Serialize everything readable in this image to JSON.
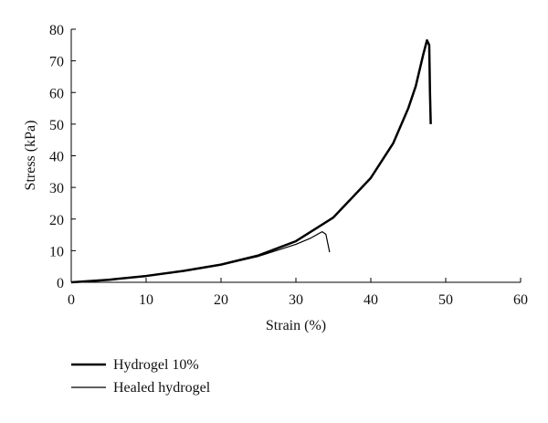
{
  "chart_data": {
    "type": "line",
    "x_label": "Strain (%)",
    "y_label": "Stress (kPa)",
    "xlim": [
      0,
      60
    ],
    "xticks": [
      0,
      10,
      20,
      30,
      40,
      50,
      60
    ],
    "ylim": [
      0,
      80
    ],
    "yticks": [
      0,
      10,
      20,
      30,
      40,
      50,
      60,
      70,
      80
    ],
    "grid": false,
    "legend": "bottom-left",
    "series": [
      {
        "name": "Hydrogel 10%",
        "color": "#000000",
        "x": [
          0,
          5,
          10,
          15,
          20,
          25,
          30,
          35,
          40,
          43,
          45,
          46,
          47,
          47.5,
          47.8,
          47.9,
          48
        ],
        "values": [
          0,
          0.8,
          2,
          3.6,
          5.6,
          8.5,
          13,
          20.5,
          33,
          44,
          55,
          62,
          72,
          76.5,
          75,
          60,
          50
        ]
      },
      {
        "name": "Healed hydrogel",
        "color": "#000000",
        "x": [
          0,
          5,
          10,
          15,
          20,
          25,
          30,
          32,
          33.5,
          34,
          34.5
        ],
        "values": [
          0,
          0.8,
          2,
          3.5,
          5.5,
          8.2,
          12,
          14,
          16,
          15.2,
          9.5
        ]
      }
    ]
  }
}
